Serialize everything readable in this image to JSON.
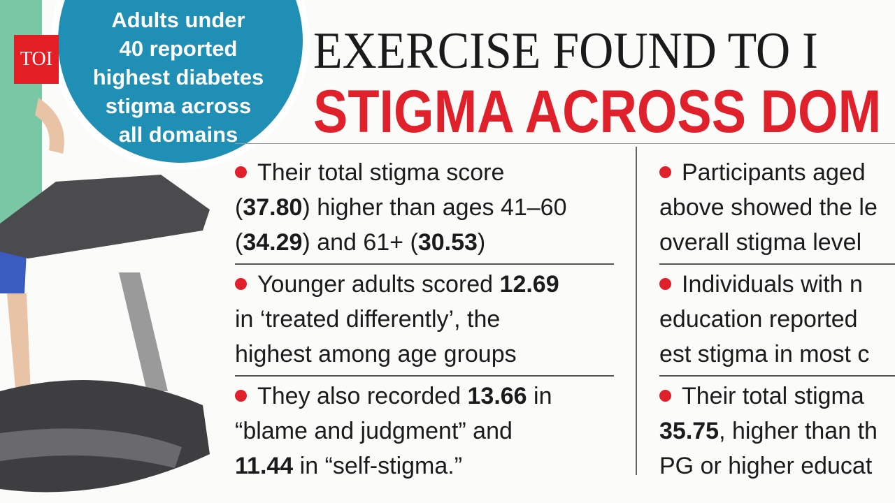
{
  "badge": "TOI",
  "bubble": {
    "lines": [
      "Adults under",
      "40 reported",
      "highest diabetes",
      "stigma across",
      "all domains"
    ]
  },
  "title": {
    "line1": "EXERCISE FOUND TO I",
    "line2": "STIGMA ACROSS DOM"
  },
  "columns": [
    {
      "bullets": [
        {
          "lines": [
            [
              {
                "t": "Their total stigma score"
              }
            ],
            [
              {
                "t": "("
              },
              {
                "t": "37.80",
                "b": true
              },
              {
                "t": ") higher than ages 41–60"
              }
            ],
            [
              {
                "t": "("
              },
              {
                "t": "34.29",
                "b": true
              },
              {
                "t": ") and 61+ ("
              },
              {
                "t": "30.53",
                "b": true
              },
              {
                "t": ")"
              }
            ]
          ]
        },
        {
          "lines": [
            [
              {
                "t": "Younger adults scored "
              },
              {
                "t": "12.69",
                "b": true
              }
            ],
            [
              {
                "t": "in ‘treated differently’, the"
              }
            ],
            [
              {
                "t": "highest among age groups"
              }
            ]
          ]
        },
        {
          "lines": [
            [
              {
                "t": "They also recorded "
              },
              {
                "t": "13.66",
                "b": true
              },
              {
                "t": " in"
              }
            ],
            [
              {
                "t": "“blame and judgment” and"
              }
            ],
            [
              {
                "t": "11.44",
                "b": true
              },
              {
                "t": " in “self-stigma.”"
              }
            ]
          ]
        }
      ]
    },
    {
      "bullets": [
        {
          "lines": [
            [
              {
                "t": "Participants aged"
              }
            ],
            [
              {
                "t": "above showed the le"
              }
            ],
            [
              {
                "t": "overall stigma level"
              }
            ]
          ]
        },
        {
          "lines": [
            [
              {
                "t": "Individuals with n"
              }
            ],
            [
              {
                "t": "education reported"
              }
            ],
            [
              {
                "t": "est stigma in most c"
              }
            ]
          ]
        },
        {
          "lines": [
            [
              {
                "t": "Their total stigma"
              }
            ],
            [
              {
                "t": "35.75",
                "b": true
              },
              {
                "t": ", higher than th"
              }
            ],
            [
              {
                "t": "PG or higher educat"
              }
            ]
          ]
        }
      ]
    }
  ]
}
